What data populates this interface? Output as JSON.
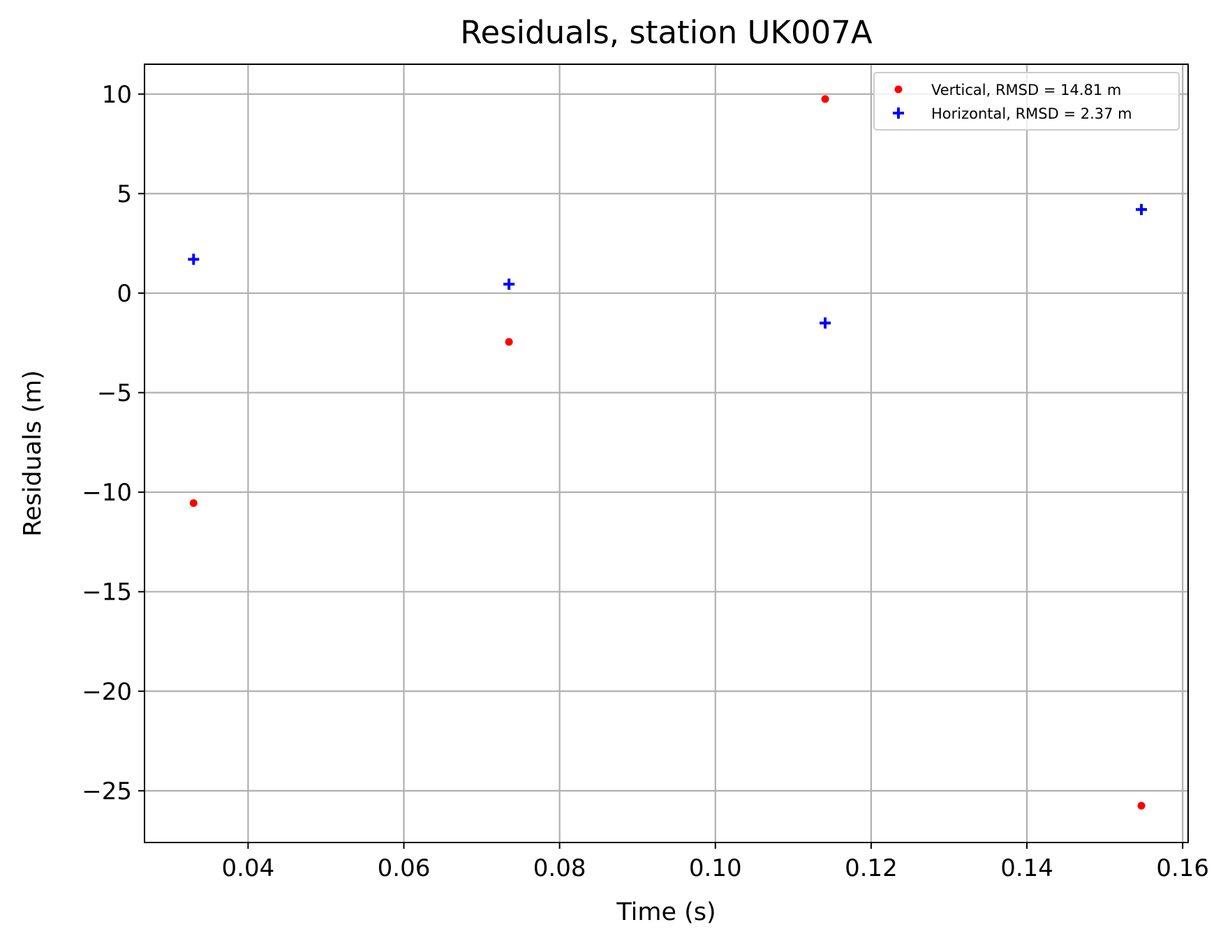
{
  "chart_data": {
    "type": "scatter",
    "title": "Residuals, station UK007A",
    "xlabel": "Time (s)",
    "ylabel": "Residuals (m)",
    "xlim": [
      0.0267,
      0.1607
    ],
    "ylim": [
      -27.6,
      11.5
    ],
    "xticks": [
      0.04,
      0.06,
      0.08,
      0.1,
      0.12,
      0.14,
      0.16
    ],
    "xtick_labels": [
      "0.04",
      "0.06",
      "0.08",
      "0.10",
      "0.12",
      "0.14",
      "0.16"
    ],
    "yticks": [
      10,
      5,
      0,
      -5,
      -10,
      -15,
      -20,
      -25
    ],
    "ytick_labels": [
      "10",
      "5",
      "0",
      "−5",
      "−10",
      "−15",
      "−20",
      "−25"
    ],
    "grid": true,
    "legend_position": "top-right",
    "series": [
      {
        "name": "Vertical, RMSD = 14.81 m",
        "marker": "dot",
        "color": "#ff0000",
        "x": [
          0.033,
          0.0735,
          0.1141,
          0.1547
        ],
        "y": [
          -10.55,
          -2.45,
          9.75,
          -25.75
        ]
      },
      {
        "name": "Horizontal, RMSD = 2.37 m",
        "marker": "plus",
        "color": "#0000ff",
        "x": [
          0.033,
          0.0735,
          0.1141,
          0.1547
        ],
        "y": [
          1.7,
          0.45,
          -1.5,
          4.2
        ]
      }
    ]
  }
}
